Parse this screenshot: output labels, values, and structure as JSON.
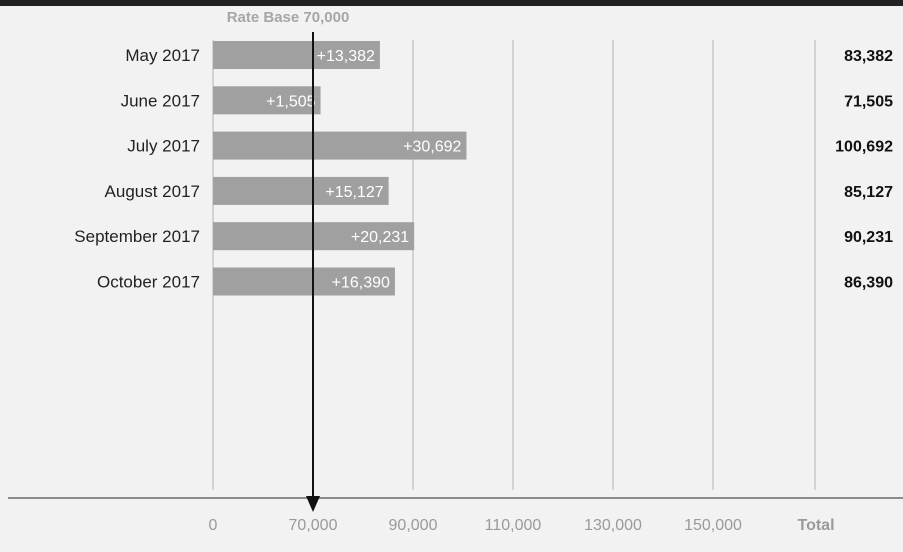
{
  "chart_data": {
    "type": "bar",
    "orientation": "horizontal",
    "annotation": "Rate Base 70,000",
    "base_value": 70000,
    "categories": [
      "May 2017",
      "June 2017",
      "July 2017",
      "August 2017",
      "September 2017",
      "October 2017"
    ],
    "increment_labels": [
      "+13,382",
      "+1,505",
      "+30,692",
      "+15,127",
      "+20,231",
      "+16,390"
    ],
    "increments": [
      13382,
      1505,
      30692,
      15127,
      20231,
      16390
    ],
    "totals": [
      83382,
      71505,
      100692,
      85127,
      90231,
      86390
    ],
    "total_labels": [
      "83,382",
      "71,505",
      "100,692",
      "85,127",
      "90,231",
      "86,390"
    ],
    "x_ticks": [
      "0",
      "70,000",
      "90,000",
      "110,000",
      "130,000",
      "150,000"
    ],
    "x_tick_values": [
      0,
      70000,
      90000,
      110000,
      130000,
      150000
    ],
    "total_header": "Total",
    "colors": {
      "bar": "#a0a0a0",
      "grid": "#b4b4b4",
      "arrow": "#111111",
      "axis": "#8c8c8c"
    }
  }
}
